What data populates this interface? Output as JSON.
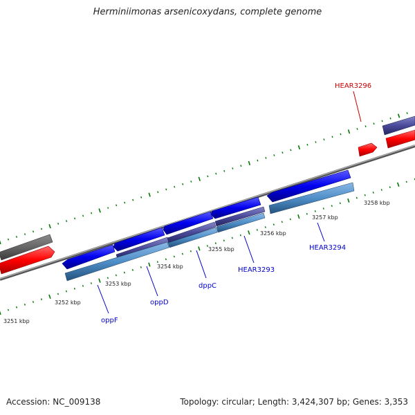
{
  "title": "Herminiimonas arsenicoxydans, complete genome",
  "footer": {
    "accession": "Accession: NC_009138",
    "summary": "Topology: circular; Length: 3,424,307 bp; Genes: 3,353"
  },
  "scale_labels": [
    "3251 kbp",
    "3252 kbp",
    "3253 kbp",
    "3254 kbp",
    "3255 kbp",
    "3256 kbp",
    "3257 kbp",
    "3258 kbp"
  ],
  "gene_labels": {
    "hear3296": "HEAR3296",
    "oppF": "oppF",
    "oppD": "oppD",
    "dppC": "dppC",
    "hear3293": "HEAR3293",
    "hear3294": "HEAR3294"
  },
  "colors": {
    "selected_gene": "#ff0000",
    "gene": "#0000ff",
    "tick": "#007700",
    "backbone": "#888888"
  }
}
